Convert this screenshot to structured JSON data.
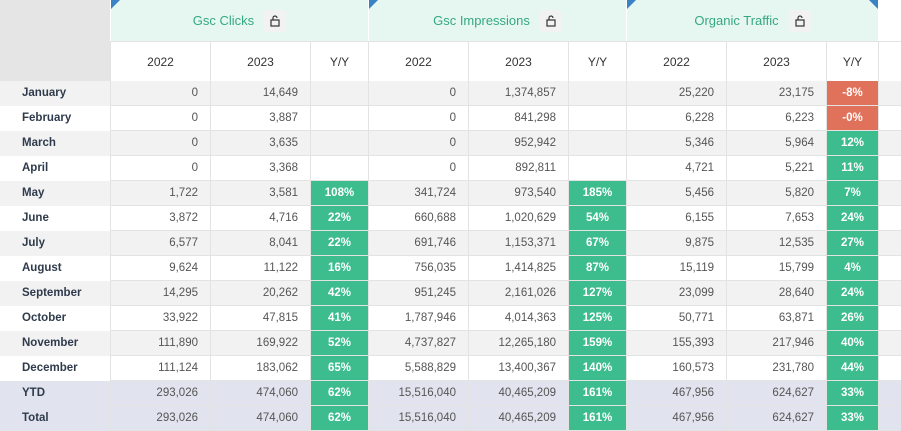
{
  "groups": [
    {
      "title": "Gsc Clicks",
      "lock_icon": "lock-icon"
    },
    {
      "title": "Gsc Impressions",
      "lock_icon": "lock-icon"
    },
    {
      "title": "Organic Traffic",
      "lock_icon": "lock-icon"
    }
  ],
  "subheaders": [
    "2022",
    "2023",
    "Y/Y",
    "2022",
    "2023",
    "Y/Y",
    "2022",
    "2023",
    "Y/Y"
  ],
  "colors": {
    "positive": "#3dbd8e",
    "negative": "#e0715a",
    "header_text": "#35a882"
  },
  "rows": [
    {
      "label": "January",
      "cells": [
        "0",
        "14,649",
        "",
        "0",
        "1,374,857",
        "",
        "25,220",
        "23,175",
        "-8%"
      ]
    },
    {
      "label": "February",
      "cells": [
        "0",
        "3,887",
        "",
        "0",
        "841,298",
        "",
        "6,228",
        "6,223",
        "-0%"
      ]
    },
    {
      "label": "March",
      "cells": [
        "0",
        "3,635",
        "",
        "0",
        "952,942",
        "",
        "5,346",
        "5,964",
        "12%"
      ]
    },
    {
      "label": "April",
      "cells": [
        "0",
        "3,368",
        "",
        "0",
        "892,811",
        "",
        "4,721",
        "5,221",
        "11%"
      ]
    },
    {
      "label": "May",
      "cells": [
        "1,722",
        "3,581",
        "108%",
        "341,724",
        "973,540",
        "185%",
        "5,456",
        "5,820",
        "7%"
      ]
    },
    {
      "label": "June",
      "cells": [
        "3,872",
        "4,716",
        "22%",
        "660,688",
        "1,020,629",
        "54%",
        "6,155",
        "7,653",
        "24%"
      ]
    },
    {
      "label": "July",
      "cells": [
        "6,577",
        "8,041",
        "22%",
        "691,746",
        "1,153,371",
        "67%",
        "9,875",
        "12,535",
        "27%"
      ]
    },
    {
      "label": "August",
      "cells": [
        "9,624",
        "11,122",
        "16%",
        "756,035",
        "1,414,825",
        "87%",
        "15,119",
        "15,799",
        "4%"
      ]
    },
    {
      "label": "September",
      "cells": [
        "14,295",
        "20,262",
        "42%",
        "951,245",
        "2,161,026",
        "127%",
        "23,099",
        "28,640",
        "24%"
      ]
    },
    {
      "label": "October",
      "cells": [
        "33,922",
        "47,815",
        "41%",
        "1,787,946",
        "4,014,363",
        "125%",
        "50,771",
        "63,871",
        "26%"
      ]
    },
    {
      "label": "November",
      "cells": [
        "111,890",
        "169,922",
        "52%",
        "4,737,827",
        "12,265,180",
        "159%",
        "155,393",
        "217,946",
        "40%"
      ]
    },
    {
      "label": "December",
      "cells": [
        "111,124",
        "183,062",
        "65%",
        "5,588,829",
        "13,400,367",
        "140%",
        "160,573",
        "231,780",
        "44%"
      ]
    },
    {
      "label": "YTD",
      "cells": [
        "293,026",
        "474,060",
        "62%",
        "15,516,040",
        "40,465,209",
        "161%",
        "467,956",
        "624,627",
        "33%"
      ]
    },
    {
      "label": "Total",
      "cells": [
        "293,026",
        "474,060",
        "62%",
        "15,516,040",
        "40,465,209",
        "161%",
        "467,956",
        "624,627",
        "33%"
      ]
    }
  ]
}
